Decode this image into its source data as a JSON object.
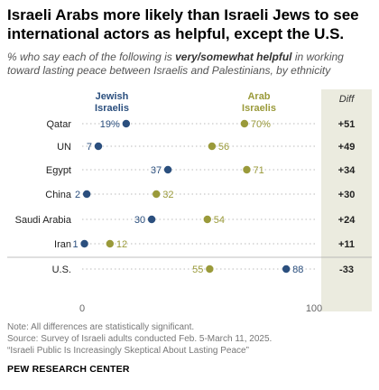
{
  "title": "Israeli Arabs more likely than Israeli Jews to see international actors as helpful, except the U.S.",
  "subtitle": {
    "before": "% who say each of the following is ",
    "emphasis": "very/somewhat helpful",
    "after": " in working toward lasting peace between Israelis and Palestinians, by ethnicity"
  },
  "colors": {
    "jewish": "#2b4f7e",
    "arab": "#9a9a3a",
    "diff_bg": "#ebebdf",
    "dots_line": "#bbbbbb"
  },
  "chart_data": {
    "type": "scatter",
    "categories": [
      "Qatar",
      "UN",
      "Egypt",
      "China",
      "Saudi Arabia",
      "Iran",
      "U.S."
    ],
    "series": [
      {
        "name": "Jewish Israelis",
        "values": [
          19,
          7,
          37,
          2,
          30,
          1,
          88
        ]
      },
      {
        "name": "Arab Israelis",
        "values": [
          70,
          56,
          71,
          32,
          54,
          12,
          55
        ]
      }
    ],
    "value_labels": {
      "Jewish Israelis": [
        "19%",
        "7",
        "37",
        "2",
        "30",
        "1",
        "88"
      ],
      "Arab Israelis": [
        "70%",
        "56",
        "71",
        "32",
        "54",
        "12",
        "55"
      ]
    },
    "diff_header": "Diff",
    "diff": [
      "+51",
      "+49",
      "+34",
      "+30",
      "+24",
      "+11",
      "-33"
    ],
    "xlim": [
      0,
      100
    ],
    "x_ticks": [
      "0",
      "100"
    ]
  },
  "notes": [
    "Note: All differences are statistically significant.",
    "Source: Survey of Israeli adults conducted Feb. 5-March 11, 2025.",
    "“Israeli Public Is Increasingly Skeptical About Lasting Peace”"
  ],
  "org": "PEW RESEARCH CENTER"
}
